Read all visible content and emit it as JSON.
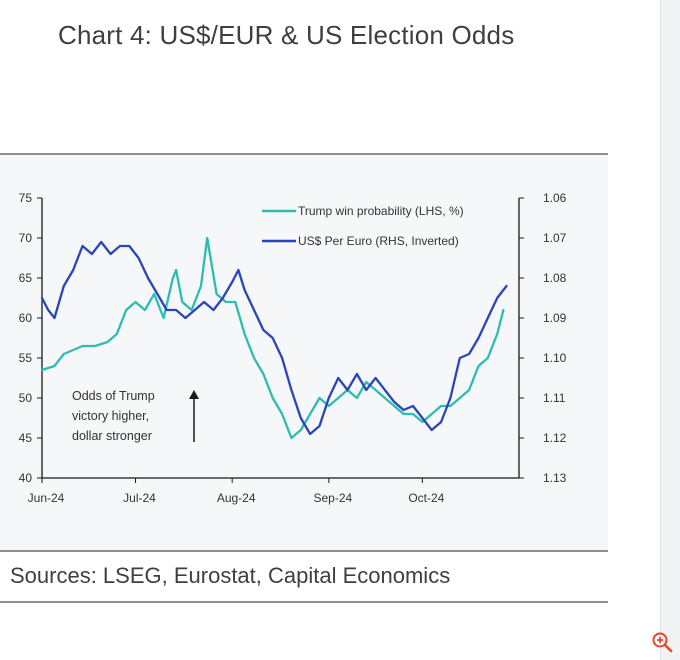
{
  "title": "Chart 4: US$/EUR & US Election Odds",
  "sources": "Sources: LSEG, Eurostat, Capital Economics",
  "icons": {
    "zoom": "zoom-in-icon"
  },
  "colors": {
    "trump": "#2dbdb0",
    "usd": "#2b45b8",
    "axis": "#1a1a1a",
    "frame": "#8a8f96"
  },
  "chart_data": {
    "type": "line",
    "title": "",
    "xlabel": "",
    "ylabel": "",
    "x_ticks": [
      "Jun-24",
      "Jul-24",
      "Aug-24",
      "Sep-24",
      "Oct-24"
    ],
    "x_range": [
      "2024-06-01",
      "2024-11-01"
    ],
    "ylim_left": [
      40,
      75
    ],
    "yticks_left": [
      40,
      45,
      50,
      55,
      60,
      65,
      70,
      75
    ],
    "ylim_right": [
      1.13,
      1.06
    ],
    "yticks_right": [
      1.13,
      1.12,
      1.11,
      1.1,
      1.09,
      1.08,
      1.07,
      1.06
    ],
    "right_axis_inverted": true,
    "grid": false,
    "legend_position": "top-right",
    "annotation": [
      "Odds of Trump",
      "victory higher,",
      "dollar stronger"
    ],
    "series": [
      {
        "name": "Trump win probability (LHS, %)",
        "axis": "left",
        "x": [
          "2024-06-01",
          "2024-06-05",
          "2024-06-08",
          "2024-06-11",
          "2024-06-14",
          "2024-06-18",
          "2024-06-22",
          "2024-06-25",
          "2024-06-28",
          "2024-07-01",
          "2024-07-04",
          "2024-07-07",
          "2024-07-10",
          "2024-07-13",
          "2024-07-14",
          "2024-07-16",
          "2024-07-19",
          "2024-07-22",
          "2024-07-24",
          "2024-07-27",
          "2024-07-30",
          "2024-08-02",
          "2024-08-05",
          "2024-08-08",
          "2024-08-11",
          "2024-08-14",
          "2024-08-17",
          "2024-08-20",
          "2024-08-23",
          "2024-08-26",
          "2024-08-29",
          "2024-09-01",
          "2024-09-04",
          "2024-09-07",
          "2024-09-10",
          "2024-09-13",
          "2024-09-16",
          "2024-09-19",
          "2024-09-22",
          "2024-09-25",
          "2024-09-28",
          "2024-10-01",
          "2024-10-04",
          "2024-10-07",
          "2024-10-10",
          "2024-10-13",
          "2024-10-16",
          "2024-10-19",
          "2024-10-22",
          "2024-10-25",
          "2024-10-27"
        ],
        "values": [
          53.5,
          54,
          55.5,
          56,
          56.5,
          56.5,
          57,
          58,
          61,
          62,
          61,
          63,
          60,
          65,
          66,
          62,
          61,
          64,
          70,
          63,
          62,
          62,
          58,
          55,
          53,
          50,
          48,
          45,
          46,
          48,
          50,
          49,
          50,
          51,
          50,
          52,
          51,
          50,
          49,
          48,
          48,
          47,
          48,
          49,
          49,
          50,
          51,
          54,
          55,
          58,
          61
        ]
      },
      {
        "name": "US$ Per Euro (RHS, Inverted)",
        "axis": "right",
        "x": [
          "2024-06-01",
          "2024-06-03",
          "2024-06-05",
          "2024-06-08",
          "2024-06-11",
          "2024-06-14",
          "2024-06-17",
          "2024-06-20",
          "2024-06-23",
          "2024-06-26",
          "2024-06-29",
          "2024-07-02",
          "2024-07-05",
          "2024-07-08",
          "2024-07-11",
          "2024-07-14",
          "2024-07-17",
          "2024-07-20",
          "2024-07-23",
          "2024-07-26",
          "2024-07-29",
          "2024-08-01",
          "2024-08-03",
          "2024-08-05",
          "2024-08-08",
          "2024-08-11",
          "2024-08-14",
          "2024-08-17",
          "2024-08-20",
          "2024-08-23",
          "2024-08-26",
          "2024-08-29",
          "2024-09-01",
          "2024-09-04",
          "2024-09-07",
          "2024-09-10",
          "2024-09-13",
          "2024-09-16",
          "2024-09-19",
          "2024-09-22",
          "2024-09-25",
          "2024-09-28",
          "2024-10-01",
          "2024-10-04",
          "2024-10-07",
          "2024-10-10",
          "2024-10-13",
          "2024-10-16",
          "2024-10-19",
          "2024-10-22",
          "2024-10-25",
          "2024-10-28"
        ],
        "values": [
          1.085,
          1.088,
          1.09,
          1.082,
          1.078,
          1.072,
          1.074,
          1.071,
          1.074,
          1.072,
          1.072,
          1.075,
          1.08,
          1.084,
          1.088,
          1.088,
          1.09,
          1.088,
          1.086,
          1.088,
          1.085,
          1.081,
          1.078,
          1.083,
          1.088,
          1.093,
          1.095,
          1.1,
          1.108,
          1.115,
          1.119,
          1.117,
          1.11,
          1.105,
          1.108,
          1.104,
          1.108,
          1.105,
          1.108,
          1.111,
          1.113,
          1.112,
          1.115,
          1.118,
          1.116,
          1.11,
          1.1,
          1.099,
          1.095,
          1.09,
          1.085,
          1.082
        ]
      }
    ]
  }
}
